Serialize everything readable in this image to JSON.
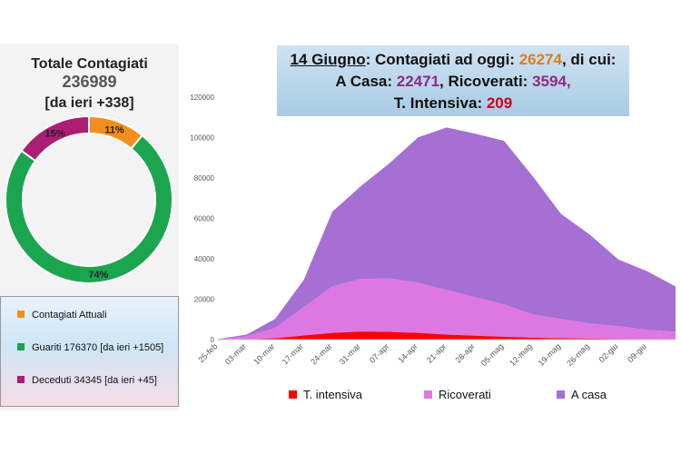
{
  "donut": {
    "title": "Totale Contagiati",
    "total": "236989",
    "delta": "[da ieri +338]",
    "slices": [
      {
        "label": "11%",
        "value": 11,
        "color": "#f28e1c"
      },
      {
        "label": "74%",
        "value": 74,
        "color": "#1ca54f"
      },
      {
        "label": "15%",
        "value": 15,
        "color": "#ab1e74"
      }
    ],
    "legend": [
      {
        "label": "Contagiati Attuali",
        "color": "#f28e1c"
      },
      {
        "label": "Guariti 176370 [da ieri +1505]",
        "color": "#1ca54f"
      },
      {
        "label": "Deceduti 34345 [da ieri +45]",
        "color": "#ab1e74"
      }
    ]
  },
  "banner": {
    "date": "14 Giugno",
    "text1": ": Contagiati ad oggi: ",
    "total_active": "26274",
    "text2": ", di cui:",
    "home_label": "A Casa: ",
    "home_value": "22471",
    "hosp_label": ", Ricoverati: ",
    "hosp_value": "3594",
    "comma": ",",
    "icu_label": "T. Intensiva: ",
    "icu_value": "209"
  },
  "chart_data": {
    "type": "area",
    "stacked": true,
    "ylim": [
      0,
      120000
    ],
    "yticks": [
      "0",
      "20000",
      "40000",
      "60000",
      "80000",
      "100000",
      "120000"
    ],
    "xtick_labels": [
      "25-feb",
      "03-mar",
      "10-mar",
      "17-mar",
      "24-mar",
      "31-mar",
      "07-apr",
      "14-apr",
      "21-apr",
      "28-apr",
      "05-mag",
      "12-mag",
      "19-mag",
      "26-mag",
      "02-giu",
      "09-giu"
    ],
    "x": [
      "25-feb",
      "03-mar",
      "10-mar",
      "17-mar",
      "24-mar",
      "31-mar",
      "07-apr",
      "14-apr",
      "21-apr",
      "28-apr",
      "05-mag",
      "12-mag",
      "19-mag",
      "26-mag",
      "02-giu",
      "09-giu",
      "14-giu"
    ],
    "series": [
      {
        "name": "T. intensiva",
        "color": "#ff0000",
        "values": [
          0,
          150,
          700,
          2000,
          3300,
          4000,
          3800,
          3300,
          2500,
          1900,
          1400,
          950,
          650,
          480,
          350,
          250,
          209
        ]
      },
      {
        "name": "Ricoverati",
        "color": "#dd77e1",
        "values": [
          100,
          1500,
          5000,
          14000,
          23000,
          26000,
          26500,
          24800,
          22000,
          19000,
          16000,
          11500,
          9500,
          7500,
          6300,
          4600,
          3594
        ]
      },
      {
        "name": "A casa",
        "color": "#a56fd3",
        "values": [
          200,
          800,
          4500,
          13500,
          37000,
          46000,
          57000,
          72000,
          80500,
          81000,
          81000,
          68500,
          52000,
          44000,
          33000,
          29000,
          22471
        ]
      }
    ],
    "legend_position": "bottom"
  }
}
